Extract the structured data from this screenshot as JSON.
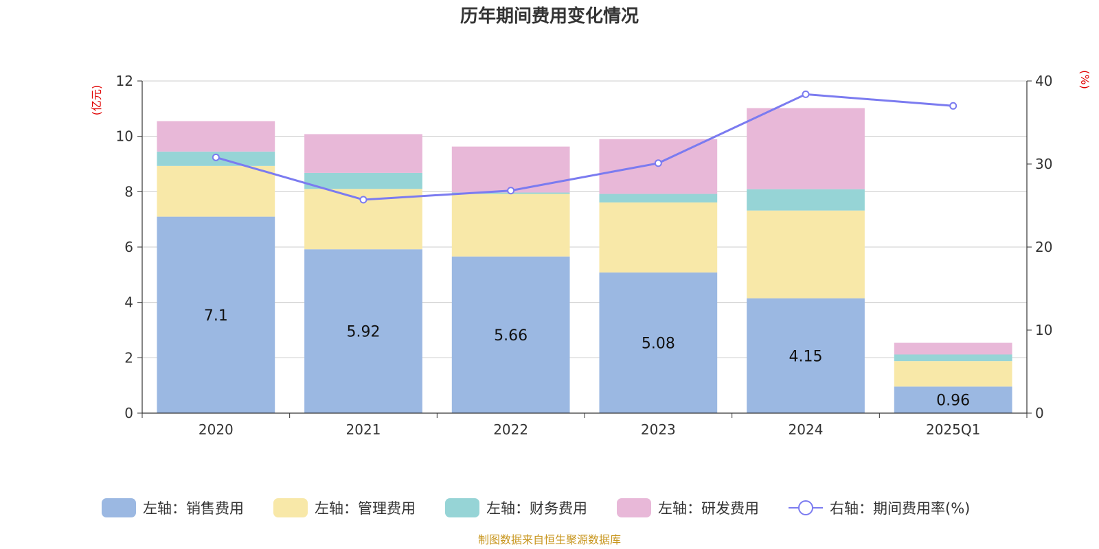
{
  "chart_data": {
    "type": "bar",
    "stacked": true,
    "title": "历年期间费用变化情况",
    "categories": [
      "2020",
      "2021",
      "2022",
      "2023",
      "2024",
      "2025Q1"
    ],
    "left_axis": {
      "unit": "(亿元)",
      "ylim": [
        0,
        12
      ],
      "ticks": [
        0,
        2,
        4,
        6,
        8,
        10,
        12
      ]
    },
    "right_axis": {
      "unit": "(%)",
      "ylim": [
        0,
        40
      ],
      "ticks": [
        0,
        10,
        20,
        30,
        40
      ]
    },
    "series": [
      {
        "name": "左轴：销售费用",
        "axis": "left",
        "color": "#9bb8e2",
        "values": [
          7.1,
          5.92,
          5.66,
          5.08,
          4.15,
          0.96
        ],
        "labels": [
          "7.1",
          "5.92",
          "5.66",
          "5.08",
          "4.15",
          "0.96"
        ]
      },
      {
        "name": "左轴：管理费用",
        "axis": "left",
        "color": "#f8e8a8",
        "values": [
          1.83,
          2.18,
          2.26,
          2.53,
          3.17,
          0.92
        ]
      },
      {
        "name": "左轴：财务费用",
        "axis": "left",
        "color": "#96d4d6",
        "values": [
          0.52,
          0.58,
          0.05,
          0.31,
          0.77,
          0.24
        ]
      },
      {
        "name": "左轴：研发费用",
        "axis": "left",
        "color": "#e8b8d8",
        "values": [
          1.1,
          1.4,
          1.66,
          1.98,
          2.93,
          0.42
        ]
      },
      {
        "name": "右轴：期间费用率(%)",
        "axis": "right",
        "type": "line",
        "color": "#7b7bf0",
        "values": [
          30.8,
          25.7,
          26.8,
          30.1,
          38.4,
          37.0
        ]
      }
    ],
    "grid": true,
    "legend_position": "bottom"
  },
  "source": "制图数据来自恒生聚源数据库"
}
